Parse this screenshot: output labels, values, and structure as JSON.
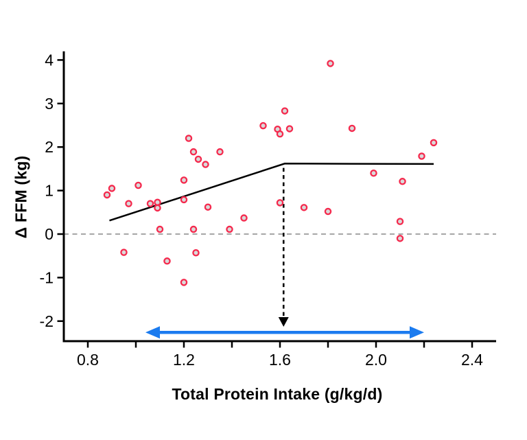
{
  "figure": {
    "xlabel": "Total Protein Intake (g/kg/d)",
    "ylabel": "Δ FFM (kg)"
  },
  "chart_data": {
    "type": "scatter",
    "title": "",
    "xlabel": "Total Protein Intake (g/kg/d)",
    "ylabel": "Δ FFM (kg)",
    "xlim": [
      0.7,
      2.5
    ],
    "ylim": [
      -2.46,
      4.2
    ],
    "grid": false,
    "x_ticks": [
      0.8,
      1.0,
      1.2,
      1.4,
      1.6,
      1.8,
      2.0,
      2.2,
      2.4
    ],
    "x_tick_labels": [
      "0.8",
      "",
      "1.2",
      "",
      "1.6",
      "",
      "2.0",
      "",
      "2.4"
    ],
    "y_ticks": [
      -2,
      -1,
      0,
      1,
      2,
      3,
      4
    ],
    "y_tick_labels": [
      "-2",
      "-1",
      "0",
      "1",
      "2",
      "3",
      "4"
    ],
    "zero_reference_line_y": 0,
    "points": [
      [
        0.88,
        0.9
      ],
      [
        0.9,
        1.05
      ],
      [
        0.95,
        -0.42
      ],
      [
        0.97,
        0.7
      ],
      [
        1.01,
        1.12
      ],
      [
        1.06,
        0.7
      ],
      [
        1.09,
        0.73
      ],
      [
        1.09,
        0.6
      ],
      [
        1.1,
        0.11
      ],
      [
        1.13,
        -0.62
      ],
      [
        1.2,
        1.24
      ],
      [
        1.2,
        0.79
      ],
      [
        1.2,
        -1.11
      ],
      [
        1.22,
        2.2
      ],
      [
        1.24,
        1.89
      ],
      [
        1.24,
        0.11
      ],
      [
        1.25,
        -0.43
      ],
      [
        1.26,
        1.72
      ],
      [
        1.29,
        1.6
      ],
      [
        1.3,
        0.62
      ],
      [
        1.35,
        1.89
      ],
      [
        1.39,
        0.11
      ],
      [
        1.45,
        0.37
      ],
      [
        1.53,
        2.49
      ],
      [
        1.59,
        2.41
      ],
      [
        1.6,
        2.3
      ],
      [
        1.6,
        0.72
      ],
      [
        1.62,
        2.83
      ],
      [
        1.64,
        2.42
      ],
      [
        1.7,
        0.61
      ],
      [
        1.8,
        0.52
      ],
      [
        1.81,
        3.92
      ],
      [
        1.9,
        2.43
      ],
      [
        1.99,
        1.4
      ],
      [
        2.1,
        0.29
      ],
      [
        2.1,
        -0.1
      ],
      [
        2.11,
        1.21
      ],
      [
        2.19,
        1.79
      ],
      [
        2.24,
        2.1
      ]
    ],
    "segmented_regression_line": [
      [
        0.89,
        0.31
      ],
      [
        1.62,
        1.62
      ],
      [
        2.24,
        1.61
      ]
    ],
    "breakpoint_arrow": {
      "x": 1.615,
      "from_y": 1.52,
      "tip_y": -2.13,
      "style": "dashed-black-down-arrow"
    },
    "range_arrow": {
      "x1": 1.04,
      "x2": 2.2,
      "y": -2.26,
      "style": "blue-double-headed"
    },
    "colors": {
      "point_stroke": "#f5294d",
      "point_fill": "#d9d9d9",
      "regression_line": "#000000",
      "zero_line": "#9a9a9a",
      "range_arrow": "#1b7bef",
      "breakpoint_arrow": "#000000",
      "axis": "#000000",
      "text": "#000000"
    }
  }
}
